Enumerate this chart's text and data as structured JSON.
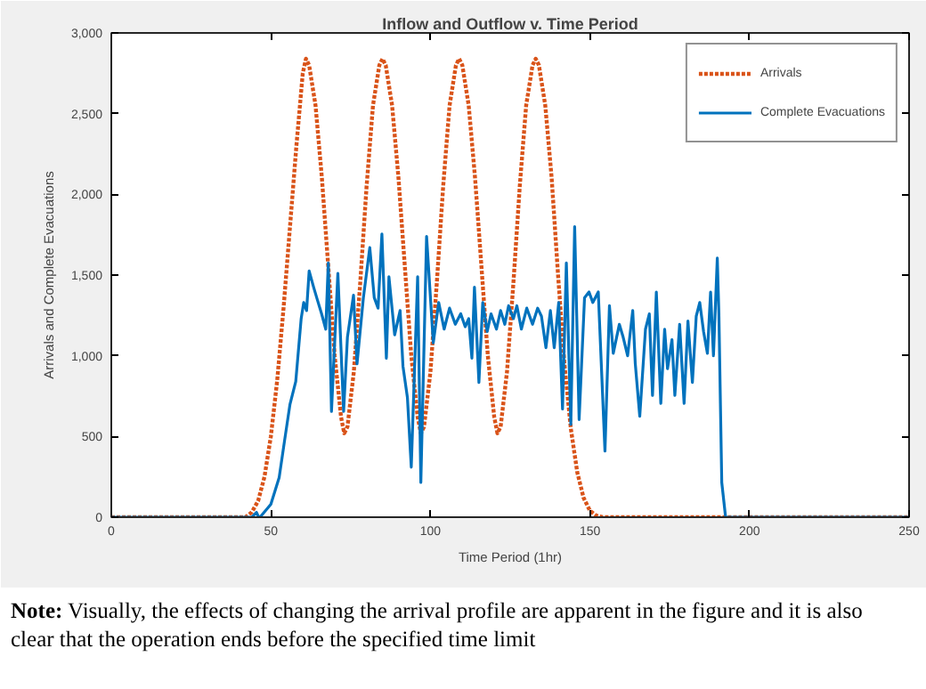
{
  "chart_data": {
    "type": "line",
    "title": "Inflow and Outflow v. Time Period",
    "xlabel": "Time Period (1hr)",
    "ylabel": "Arrivals and Complete Evacuations",
    "xlim": [
      0,
      250
    ],
    "xticks": [
      0,
      50,
      100,
      150,
      200,
      250
    ],
    "ylim": [
      0,
      3000
    ],
    "yticks": [
      0,
      500,
      {
        "value": 1000,
        "label": "1,000"
      },
      {
        "value": 1500,
        "label": "1,500"
      },
      {
        "value": 2000,
        "label": "2,000"
      },
      {
        "value": 2500,
        "label": "2,500"
      },
      {
        "value": 3000,
        "label": "3,000"
      }
    ],
    "grid": false,
    "legend": "top right",
    "marker": "none",
    "series": [
      {
        "name": "Arrivals",
        "color": "#d95319",
        "line_style": "dotted",
        "x": [
          0,
          40,
          42,
          44,
          46,
          48,
          50,
          52,
          54,
          56,
          58,
          60,
          61,
          62,
          64,
          66,
          68,
          70,
          72,
          73,
          74,
          76,
          78,
          80,
          82,
          84,
          85,
          86,
          88,
          90,
          92,
          94,
          96,
          97,
          98,
          100,
          102,
          104,
          106,
          108,
          109,
          110,
          112,
          114,
          116,
          118,
          120,
          121,
          122,
          124,
          126,
          128,
          130,
          132,
          133,
          134,
          136,
          138,
          140,
          142,
          144,
          146,
          148,
          150,
          152,
          154,
          250
        ],
        "values": [
          0,
          0,
          0,
          30,
          100,
          250,
          500,
          850,
          1300,
          1800,
          2300,
          2750,
          2840,
          2800,
          2550,
          2100,
          1550,
          1000,
          620,
          520,
          560,
          900,
          1450,
          2050,
          2550,
          2800,
          2840,
          2800,
          2550,
          2100,
          1550,
          1000,
          620,
          520,
          560,
          900,
          1450,
          2050,
          2550,
          2800,
          2840,
          2800,
          2550,
          2100,
          1550,
          1000,
          620,
          520,
          560,
          900,
          1450,
          2050,
          2550,
          2800,
          2840,
          2800,
          2550,
          2100,
          1500,
          950,
          550,
          280,
          120,
          40,
          10,
          0,
          0
        ]
      },
      {
        "name": "Complete Evacuations",
        "color": "#0072bd",
        "line_style": "solid",
        "x": [
          0,
          44,
          45.5,
          46.2,
          46.6,
          50,
          52.6,
          54.3,
          56,
          57.8,
          59.5,
          60.3,
          61.2,
          62,
          63.4,
          64.6,
          65.9,
          67.2,
          68,
          69,
          71,
          72.8,
          74,
          75.9,
          77,
          79,
          81,
          82.4,
          83.6,
          84.8,
          86.2,
          87,
          88.8,
          90.5,
          91.4,
          92.8,
          94,
          96,
          97,
          98.8,
          100.9,
          102.6,
          104.3,
          106,
          107.8,
          109.5,
          110.9,
          112,
          113,
          113.8,
          115.2,
          116.4,
          117.8,
          119,
          120.7,
          122,
          123.3,
          124.5,
          126,
          127.1,
          128.5,
          130.2,
          132,
          133.6,
          134.8,
          136.2,
          137.6,
          138.8,
          140.2,
          141.4,
          142.6,
          144,
          145.2,
          146.6,
          148.3,
          149.7,
          150.9,
          152.6,
          154.7,
          156.1,
          157.3,
          159.2,
          160.4,
          161.8,
          163.4,
          164.2,
          165.6,
          167.4,
          168.6,
          169.6,
          170.8,
          172.2,
          173.4,
          174.3,
          175.7,
          176.6,
          178.1,
          179.5,
          180.7,
          182.1,
          183.3,
          184.4,
          185.6,
          186.8,
          187.8,
          188.7,
          189.9,
          190.4,
          191.3,
          192.5,
          250
        ],
        "values": [
          0,
          0,
          30,
          0,
          0,
          80,
          245,
          475,
          700,
          840,
          1230,
          1330,
          1280,
          1525,
          1425,
          1345,
          1260,
          1165,
          1575,
          655,
          1510,
          655,
          1115,
          1375,
          950,
          1360,
          1670,
          1360,
          1295,
          1755,
          985,
          1490,
          1130,
          1280,
          935,
          740,
          310,
          1490,
          215,
          1740,
          1080,
          1330,
          1165,
          1295,
          1195,
          1260,
          1180,
          1230,
          985,
          1425,
          835,
          1330,
          1150,
          1260,
          1165,
          1280,
          1195,
          1310,
          1230,
          1310,
          1165,
          1295,
          1195,
          1295,
          1245,
          1050,
          1280,
          1050,
          1330,
          670,
          1575,
          575,
          1800,
          605,
          1360,
          1395,
          1330,
          1395,
          410,
          1310,
          1015,
          1195,
          1115,
          1000,
          1280,
          950,
          625,
          1165,
          1260,
          755,
          1395,
          705,
          1165,
          920,
          1100,
          755,
          1195,
          705,
          1215,
          835,
          1245,
          1330,
          1150,
          1015,
          1395,
          1000,
          1605,
          1260,
          215,
          0,
          0
        ]
      }
    ],
    "annotations": [
      "Note: Visually, the effects of changing the arrival profile are apparent in the figure and it is also clear that the operation ends before the specified time limit"
    ]
  }
}
